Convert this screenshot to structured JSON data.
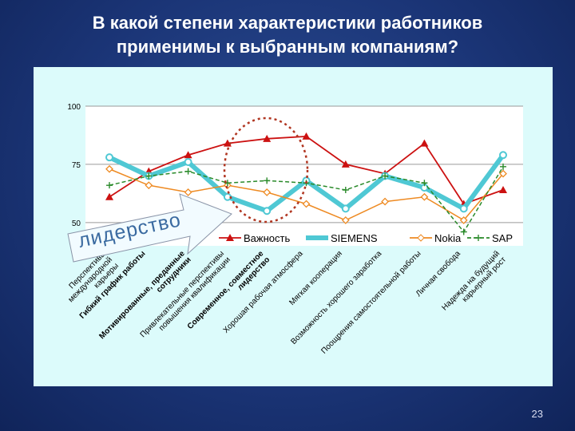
{
  "slide": {
    "title_line1": "В какой степени характеристики работников",
    "title_line2": "применимы к выбранным компаниям?",
    "page_number": "23",
    "callout_text": "лидерство"
  },
  "chart_data": {
    "type": "line",
    "ylim": [
      40,
      100
    ],
    "yticks": [
      "100",
      "75",
      "50"
    ],
    "yticks_values": [
      100,
      75,
      50
    ],
    "categories": [
      {
        "lines": [
          "Перспективы",
          "международной",
          "карьеры"
        ],
        "bold": false
      },
      {
        "lines": [
          "Гибкий график работы"
        ],
        "bold": true
      },
      {
        "lines": [
          "Мотивированные, преданные",
          "сотрудники"
        ],
        "bold": true
      },
      {
        "lines": [
          "Привлекательные перспективы",
          "повышения квалификации"
        ],
        "bold": false
      },
      {
        "lines": [
          "Современное, совместное",
          "лидерство"
        ],
        "bold": true
      },
      {
        "lines": [
          "Хорошая рабочая атмосфера"
        ],
        "bold": false
      },
      {
        "lines": [
          "Мягкая кооперация"
        ],
        "bold": false
      },
      {
        "lines": [
          "Возможность хорошего заработка"
        ],
        "bold": false
      },
      {
        "lines": [
          "Поощрения самостоятельной работы"
        ],
        "bold": false
      },
      {
        "lines": [
          "Личная свобода"
        ],
        "bold": false
      },
      {
        "lines": [
          "Надежда на будущий",
          "карьерный рост"
        ],
        "bold": false
      }
    ],
    "series": [
      {
        "name": "Важность",
        "color": "#cc1111",
        "marker": "triangle",
        "values": [
          61,
          72,
          79,
          84,
          86,
          87,
          75,
          71,
          84,
          58,
          64
        ]
      },
      {
        "name": "SIEMENS",
        "color": "#4fc8d4",
        "marker": "circle",
        "values": [
          78,
          70,
          76,
          61,
          55,
          68,
          56,
          70,
          65,
          56,
          79
        ]
      },
      {
        "name": "Nokia",
        "color": "#ee8a22",
        "marker": "diamond",
        "values": [
          73,
          66,
          63,
          66,
          63,
          58,
          51,
          59,
          61,
          51,
          71
        ]
      },
      {
        "name": "SAP",
        "color": "#2a8a2a",
        "marker": "plus",
        "values": [
          66,
          70,
          72,
          67,
          68,
          67,
          64,
          70,
          67,
          46,
          74
        ]
      }
    ],
    "legend_position": "inside-bottom-right",
    "grid": true
  }
}
